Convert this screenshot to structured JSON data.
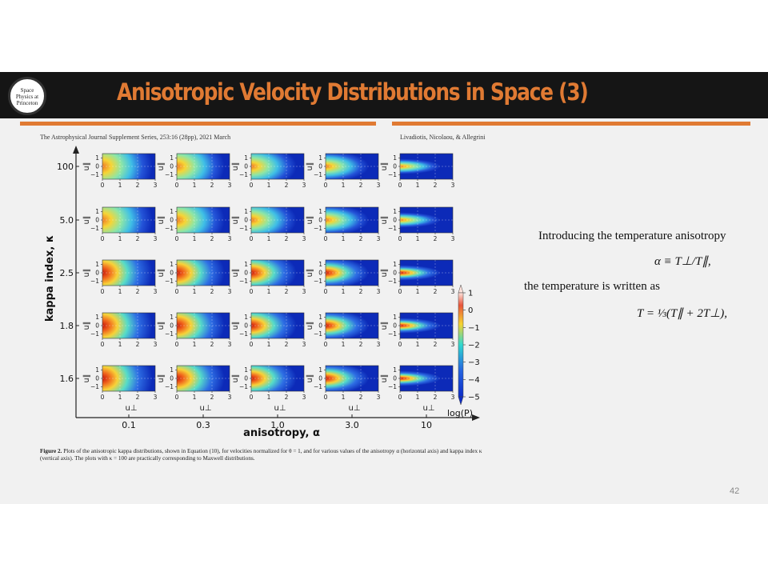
{
  "slide": {
    "title": "Anisotropic Velocity Distributions in Space  (3)",
    "logo_text": "Space\nPhysics at\nPrinceton",
    "journal_header": "The Astrophysical Journal Supplement Series, 253:16 (28pp), 2021 March",
    "authors": "Livadiotis, Nicolaou, & Allegrini",
    "caption_label": "Figure 2.",
    "caption_text": " Plots of the anisotropic kappa distributions, shown in Equation (10), for velocities normalized for θ = 1, and for various values of the anisotropy α (horizontal axis) and kappa index κ (vertical axis). The plots with κ = 100 are practically corresponding to Maxwell distributions.",
    "text_intro": "Introducing the temperature anisotropy",
    "eq_alpha": "α ≡ T⊥/T∥,",
    "text_temp": "the temperature is written as",
    "eq_temp": "T = ⅓(T∥ + 2T⊥),",
    "page_number": "42"
  },
  "chart_data": {
    "type": "heatmap",
    "xlabel": "anisotropy, α",
    "ylabel": "kappa index, κ",
    "alpha_values": [
      0.1,
      0.3,
      1.0,
      3.0,
      10
    ],
    "alpha_labels": [
      "0.1",
      "0.3",
      "1.0",
      "3.0",
      "10"
    ],
    "kappa_values": [
      100,
      5.0,
      2.5,
      1.8,
      1.6
    ],
    "kappa_labels": [
      "100",
      "5.0",
      "2.5",
      "1.8",
      "1.6"
    ],
    "panel_xlabel": "u⊥",
    "panel_ylabel": "u∥",
    "panel_xticks": [
      0,
      1,
      2,
      3
    ],
    "panel_yticks": [
      1,
      0,
      -1
    ],
    "xlim": [
      0,
      3
    ],
    "ylim": [
      -1.5,
      1.5
    ],
    "colorbar": {
      "label": "log(P)",
      "ticks": [
        1,
        0,
        -1,
        -2,
        -3,
        -4,
        -5
      ],
      "range": [
        -5,
        1
      ],
      "colormap": "jet"
    }
  }
}
